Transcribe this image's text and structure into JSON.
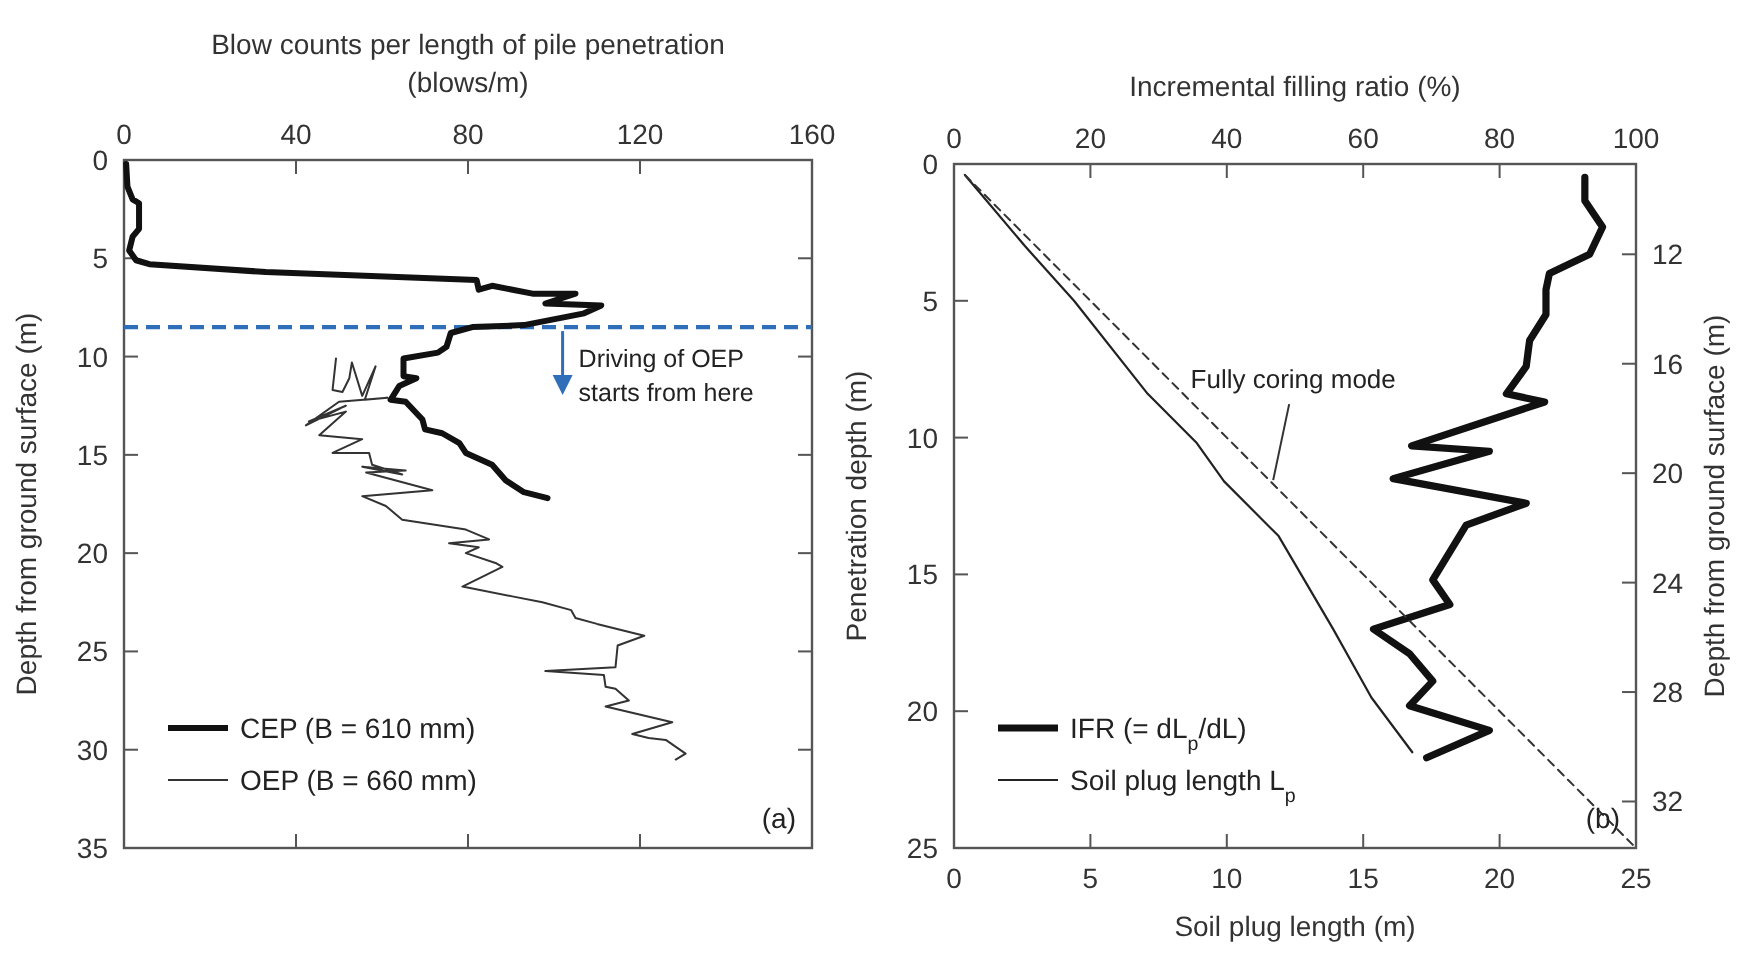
{
  "chart_data": [
    {
      "type": "line",
      "xlabel": "Blow counts per length of pile penetration (blows/m)",
      "ylabel": "Depth from ground surface (m)",
      "xlim": [
        0,
        160
      ],
      "xticks": [
        0,
        40,
        80,
        120,
        160
      ],
      "ylim": [
        35,
        0
      ],
      "yticks": [
        0,
        5,
        10,
        15,
        20,
        25,
        30,
        35
      ],
      "legend": "bottom left",
      "series": [
        {
          "name": "CEP (B = 610 mm)",
          "color": "#111111",
          "x": [
            0.5,
            0.8,
            2,
            3.5,
            3.5,
            2,
            1.2,
            2.8,
            5.9,
            33,
            82,
            82.5,
            85.6,
            95,
            105,
            98,
            111,
            107,
            93,
            81,
            76,
            75,
            73,
            65,
            65,
            68,
            64,
            62,
            65.5,
            69.4,
            70,
            74,
            78,
            79.5,
            85.6,
            88.8,
            93,
            98.5
          ],
          "values": [
            0.2,
            1.35,
            2,
            2.2,
            3.5,
            3.9,
            4.6,
            5.1,
            5.3,
            5.7,
            6.1,
            6.6,
            6.4,
            6.8,
            6.8,
            7.3,
            7.4,
            7.8,
            8.4,
            8.5,
            8.8,
            9.5,
            9.8,
            10.1,
            11,
            11.1,
            11.5,
            12.2,
            12.3,
            13.2,
            13.7,
            13.9,
            14.4,
            14.9,
            15.5,
            16.3,
            16.9,
            17.2
          ]
        },
        {
          "name": "OEP (B = 660 mm)",
          "color": "#333333",
          "x": [
            49.3,
            48.5,
            50.8,
            52.4,
            53,
            55.4,
            58.5,
            56,
            61.3,
            50,
            42.3,
            51.6,
            43,
            51.6,
            45.4,
            55.4,
            48.5,
            57,
            57.7,
            64.7,
            55.4,
            65.5,
            56.3,
            71.7,
            55.4,
            60.9,
            64.7,
            79.5,
            84.9,
            75.6,
            82.5,
            79.5,
            86.4,
            88,
            78.7,
            90.3,
            97.3,
            104,
            105,
            110,
            121,
            114.8,
            114.3,
            98,
            111.6,
            112,
            114.3,
            117.4,
            112,
            127.5,
            118.2,
            122,
            126,
            130.6,
            128.3
          ],
          "values": [
            10.1,
            11.7,
            11.8,
            11.1,
            10.3,
            12,
            10.5,
            12.2,
            12.1,
            12.3,
            13.5,
            12.5,
            13.3,
            12.8,
            14,
            14.2,
            14.9,
            14.9,
            15.5,
            16,
            15.6,
            15.8,
            15.9,
            16.8,
            17.1,
            17.6,
            18.3,
            18.8,
            19.3,
            19.5,
            19.7,
            20,
            20.5,
            20.7,
            21.7,
            22.2,
            22.5,
            22.9,
            23.3,
            23.6,
            24.2,
            24.7,
            25.8,
            26,
            26.2,
            26.8,
            26.9,
            27.5,
            27.8,
            28.6,
            29.2,
            29.4,
            29.5,
            30.2,
            30.5
          ]
        }
      ],
      "ref_lines": [
        {
          "axis": "y",
          "value": 8.5,
          "color": "#2f6fba",
          "line_style": "dashed"
        }
      ],
      "annotations": [
        {
          "text": "Driving of OEP starts from here",
          "x": 102,
          "y": 8.5
        },
        "(a)"
      ]
    },
    {
      "type": "line",
      "xlabel": "Soil plug length (m)",
      "x2label": "Incremental filling ratio (%)",
      "ylabel": "Penetration depth (m)",
      "y2label": "Depth from ground surface (m)",
      "xlim": [
        0,
        25
      ],
      "xticks": [
        0,
        5,
        10,
        15,
        20,
        25
      ],
      "x2lim": [
        0,
        100
      ],
      "x2ticks": [
        0,
        20,
        40,
        60,
        80,
        100
      ],
      "ylim": [
        25,
        0
      ],
      "yticks": [
        0,
        5,
        10,
        15,
        20,
        25
      ],
      "y2lim": [
        33.7,
        8.7
      ],
      "y2ticks": [
        12,
        16,
        20,
        24,
        28,
        32
      ],
      "legend": "bottom left",
      "series": [
        {
          "name": "IFR (= dL$_{p}$/dL)",
          "color": "#111111",
          "axis": "x2",
          "x": [
            92.5,
            92.5,
            95.1,
            93.2,
            87.3,
            86.8,
            86.8,
            84.4,
            83.9,
            81,
            86.6,
            67.1,
            78.5,
            64.4,
            83.9,
            75.1,
            70.2,
            72.7,
            61.5,
            66.8,
            70.2,
            66.8,
            78.5,
            69.3
          ],
          "values": [
            0.49,
            1.34,
            2.3,
            3.3,
            4.0,
            4.6,
            5.5,
            6.45,
            7.4,
            8.4,
            8.7,
            10.3,
            10.5,
            11.5,
            12.4,
            13.2,
            15.2,
            16.1,
            17.0,
            17.9,
            18.9,
            19.8,
            20.7,
            21.7
          ]
        },
        {
          "name": "Soil plug length L$_{p}$",
          "color": "#222222",
          "x": [
            0.4,
            2.6,
            4.4,
            7.1,
            8.9,
            9.9,
            11.9,
            13.9,
            15.3,
            16.8
          ],
          "values": [
            0.4,
            3.0,
            5.0,
            8.4,
            10.2,
            11.6,
            13.6,
            17.0,
            19.5,
            21.5
          ]
        },
        {
          "color": "#333333",
          "line_style": "dashed",
          "x": [
            0.4,
            25
          ],
          "values": [
            0.4,
            25
          ]
        }
      ],
      "annotations": [
        {
          "text": "Fully coring mode",
          "x": 11.7,
          "y": 11.7
        },
        "(b)"
      ]
    }
  ]
}
